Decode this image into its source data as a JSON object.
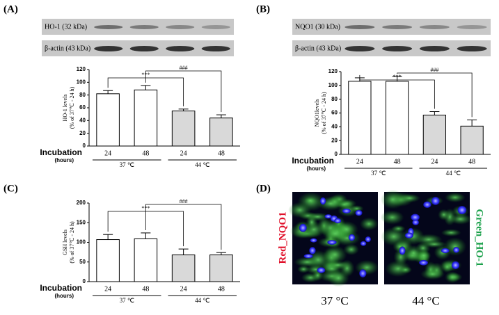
{
  "chart_data": [
    {
      "type": "bar",
      "panel": "(A)",
      "blots": [
        "HO-1 (32 kDa)",
        "β-actin (43 kDa)"
      ],
      "ylabel": [
        "HO-1 levels",
        "(% of 37℃ - 24 h)"
      ],
      "xlabel": "Incubation",
      "xunit": "(hours)",
      "categories": [
        "24",
        "48",
        "24",
        "48"
      ],
      "groups": [
        "37 ℃",
        "44 ℃"
      ],
      "values": [
        82,
        88,
        55,
        44
      ],
      "errors": [
        5,
        7,
        3,
        5
      ],
      "colors": [
        "#ffffff",
        "#ffffff",
        "#d9d9d9",
        "#d9d9d9"
      ],
      "annotations": [
        "***",
        "###"
      ],
      "ylim": [
        0,
        120
      ],
      "yticks": [
        0,
        20,
        40,
        60,
        80,
        100,
        120
      ]
    },
    {
      "type": "bar",
      "panel": "(B)",
      "blots": [
        "NQO1 (30 kDa)",
        "β-actin (43 kDa)"
      ],
      "ylabel": [
        "NQO1levels",
        "(% of 37℃ - 24 h)"
      ],
      "xlabel": "Incubation",
      "xunit": "(hours)",
      "categories": [
        "24",
        "48",
        "24",
        "48"
      ],
      "groups": [
        "37 ℃",
        "44 ℃"
      ],
      "values": [
        106,
        106,
        57,
        41
      ],
      "errors": [
        5,
        7,
        5,
        9
      ],
      "colors": [
        "#ffffff",
        "#ffffff",
        "#d9d9d9",
        "#d9d9d9"
      ],
      "annotations": [
        "***",
        "###"
      ],
      "ylim": [
        0,
        120
      ],
      "yticks": [
        0,
        20,
        40,
        60,
        80,
        100,
        120
      ]
    },
    {
      "type": "bar",
      "panel": "(C)",
      "ylabel": [
        "GSH levels",
        "(% of 37℃ - 24 h)"
      ],
      "xlabel": "Incubation",
      "xunit": "(hours)",
      "categories": [
        "24",
        "48",
        "24",
        "48"
      ],
      "groups": [
        "37 ℃",
        "44 ℃"
      ],
      "values": [
        107,
        109,
        68,
        68
      ],
      "errors": [
        13,
        15,
        15,
        6
      ],
      "colors": [
        "#ffffff",
        "#ffffff",
        "#d9d9d9",
        "#d9d9d9"
      ],
      "annotations": [
        "***",
        "###"
      ],
      "ylim": [
        0,
        200
      ],
      "yticks": [
        0,
        50,
        100,
        150,
        200
      ]
    }
  ],
  "panel_d": {
    "panel": "(D)",
    "left_label": "Red_NQO1",
    "right_label": "Green_HO-1",
    "captions": [
      "37 °C",
      "44 °C"
    ]
  }
}
